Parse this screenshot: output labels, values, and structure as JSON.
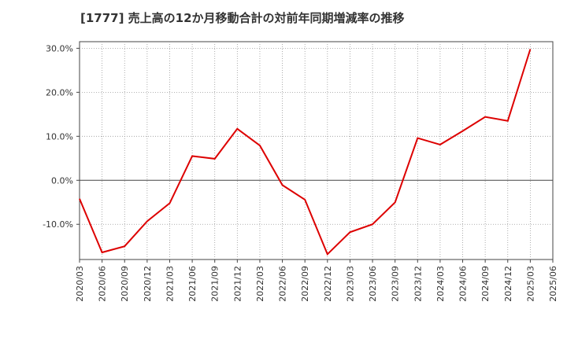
{
  "chart_data": {
    "type": "line",
    "title": "[1777]  売上高の12か月移動合計の対前年同期増減率の推移",
    "xlabel": "",
    "ylabel": "",
    "ylim": [
      -18,
      31.5
    ],
    "yticks": [
      30,
      20,
      10,
      0,
      -10
    ],
    "ytick_labels": [
      "30.0%",
      "20.0%",
      "10.0%",
      "0.0%",
      "-10.0%"
    ],
    "categories": [
      "2020/03",
      "2020/06",
      "2020/09",
      "2020/12",
      "2021/03",
      "2021/06",
      "2021/09",
      "2021/12",
      "2022/03",
      "2022/06",
      "2022/09",
      "2022/12",
      "2023/03",
      "2023/06",
      "2023/09",
      "2023/12",
      "2024/03",
      "2024/06",
      "2024/09",
      "2024/12",
      "2025/03",
      "2025/06"
    ],
    "series": [
      {
        "name": "増減率",
        "color": "#dd0000",
        "values": [
          -4.2,
          -16.4,
          -15.0,
          -9.3,
          -5.2,
          5.5,
          4.9,
          11.7,
          7.9,
          -1.1,
          -4.4,
          -16.8,
          -11.8,
          -10.0,
          -5.0,
          9.6,
          8.1,
          11.2,
          14.4,
          13.5,
          29.8,
          null
        ]
      }
    ],
    "grid": true
  }
}
